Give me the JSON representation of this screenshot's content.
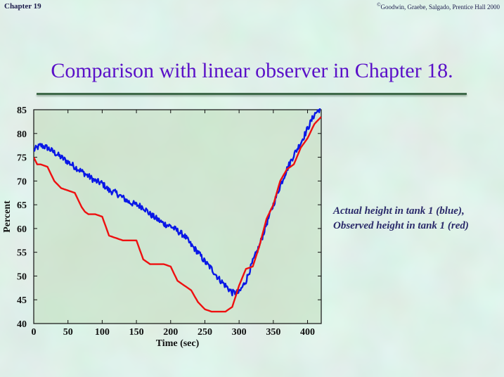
{
  "header": {
    "chapter": "Chapter 19",
    "copyright_symbol": "©",
    "copyright": "Goodwin, Graebe, Salgado, Prentice Hall 2000"
  },
  "slide": {
    "title": "Comparison with linear observer  in Chapter 18."
  },
  "caption": {
    "line1": "Actual height in tank 1 (blue),",
    "line2": "Observed height in tank 1 (red)"
  },
  "colors": {
    "background": "#b8d4b0",
    "title": "#5a10c8",
    "actual": "#0a18e6",
    "observed": "#ee1010"
  },
  "chart_data": {
    "type": "line",
    "xlabel": "Time (sec)",
    "ylabel": "Percent",
    "xlim": [
      0,
      420
    ],
    "ylim": [
      40,
      85
    ],
    "xticks": [
      0,
      50,
      100,
      150,
      200,
      250,
      300,
      350,
      400
    ],
    "yticks": [
      40,
      45,
      50,
      55,
      60,
      65,
      70,
      75,
      80,
      85
    ],
    "grid": false,
    "series": [
      {
        "name": "Actual height in tank 1",
        "color": "blue",
        "x": [
          0,
          10,
          20,
          30,
          40,
          50,
          60,
          70,
          80,
          90,
          100,
          110,
          120,
          130,
          140,
          150,
          160,
          170,
          180,
          190,
          200,
          210,
          220,
          230,
          240,
          250,
          260,
          270,
          280,
          290,
          300,
          310,
          320,
          330,
          340,
          350,
          360,
          370,
          380,
          390,
          400,
          410,
          420
        ],
        "y": [
          76.5,
          77.5,
          77,
          76,
          75,
          74,
          73,
          72,
          71,
          70,
          69.5,
          68,
          67.5,
          66.5,
          65.5,
          65,
          64.5,
          63,
          62,
          61,
          60.5,
          59.5,
          58.5,
          56.5,
          55,
          53,
          51.5,
          49.5,
          48,
          46.5,
          46.5,
          49,
          53,
          56.5,
          61,
          65,
          69,
          72.5,
          75.5,
          78,
          81,
          84,
          85.5
        ]
      },
      {
        "name": "Observed height in tank 1",
        "color": "red",
        "x": [
          0,
          5,
          10,
          20,
          30,
          40,
          50,
          60,
          70,
          75,
          80,
          90,
          100,
          110,
          120,
          130,
          140,
          150,
          160,
          170,
          180,
          190,
          200,
          210,
          220,
          230,
          240,
          250,
          260,
          270,
          280,
          290,
          300,
          310,
          320,
          330,
          340,
          350,
          360,
          370,
          380,
          390,
          400,
          410,
          420
        ],
        "y": [
          75,
          73.5,
          73.5,
          73,
          70,
          68.5,
          68,
          67.5,
          64.5,
          63.5,
          63,
          63,
          62.5,
          58.5,
          58,
          57.5,
          57.5,
          57.5,
          53.5,
          52.5,
          52.5,
          52.5,
          52,
          49,
          48,
          47,
          44.5,
          43,
          42.5,
          42.5,
          42.5,
          43.5,
          48,
          51.5,
          52,
          56.5,
          62,
          65,
          70,
          72.5,
          73.5,
          77,
          79,
          82,
          83.5
        ]
      }
    ]
  }
}
